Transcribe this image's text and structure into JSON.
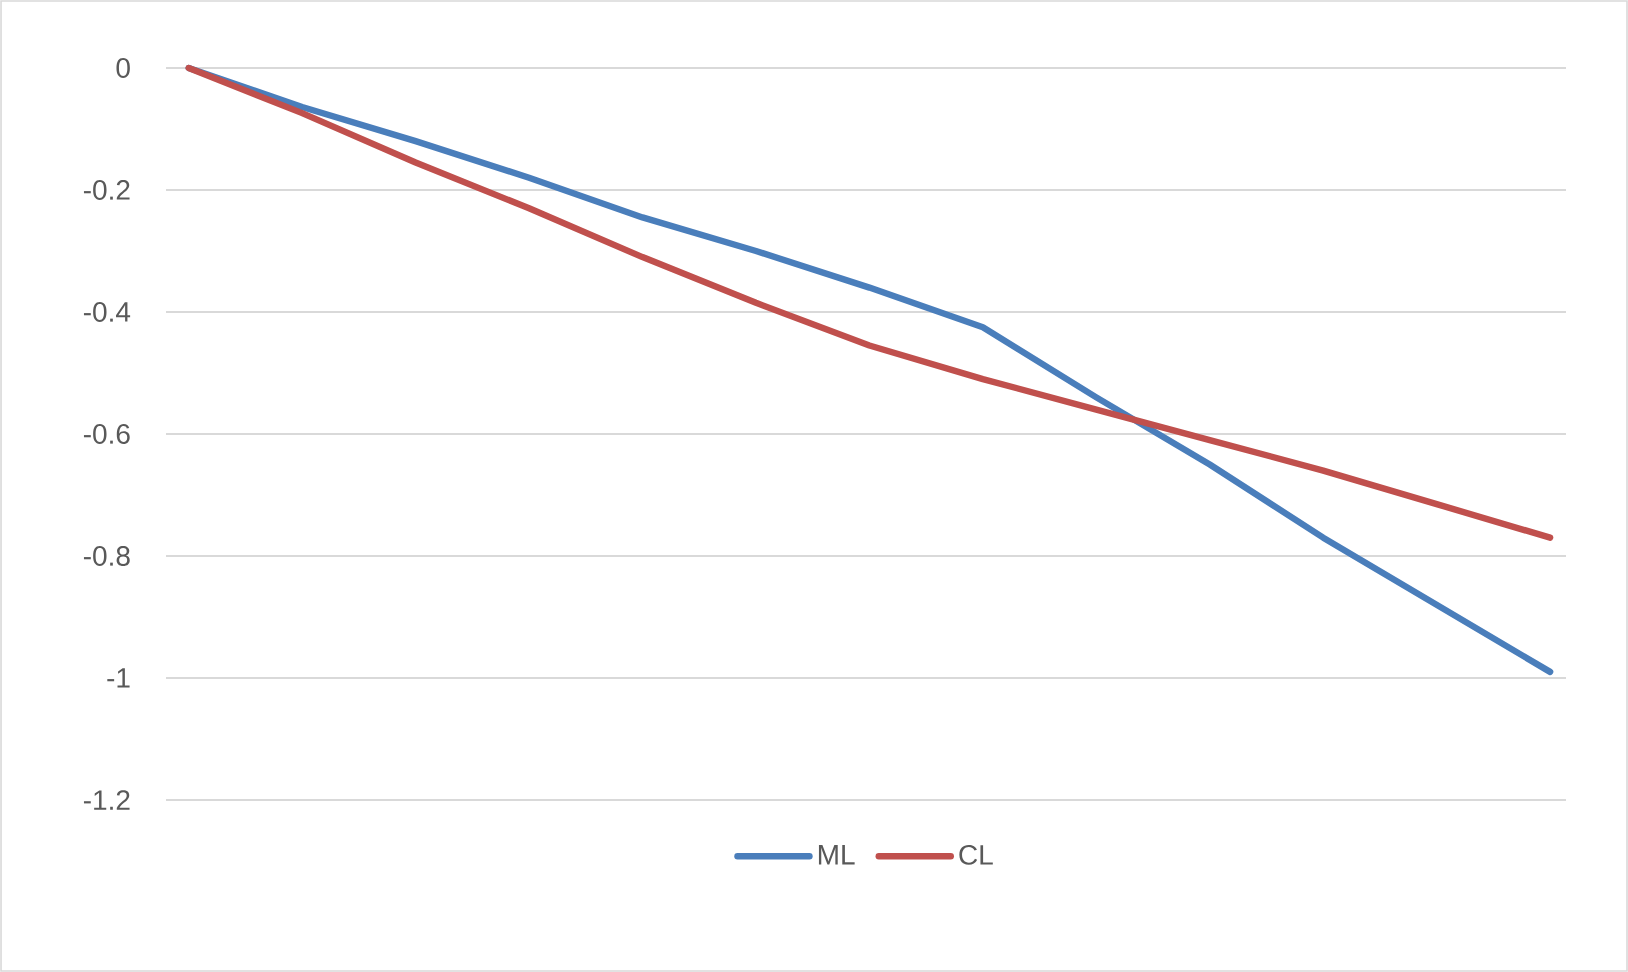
{
  "chart_data": {
    "type": "line",
    "categories": [
      null,
      null,
      null,
      null,
      null,
      null,
      null,
      null,
      null,
      null,
      null,
      null,
      null
    ],
    "series": [
      {
        "name": "ML",
        "color": "#4a7ebb",
        "values": [
          0,
          -0.064,
          -0.12,
          -0.18,
          -0.245,
          -0.3,
          -0.36,
          -0.425,
          -0.54,
          -0.65,
          -0.77,
          -0.88,
          -0.99
        ]
      },
      {
        "name": "CL",
        "color": "#c0504d",
        "values": [
          0,
          -0.074,
          -0.155,
          -0.23,
          -0.31,
          -0.385,
          -0.455,
          -0.51,
          -0.56,
          -0.61,
          -0.66,
          -0.715,
          -0.77
        ]
      }
    ],
    "ylim": [
      -1.2,
      0
    ],
    "yticks": [
      0,
      -0.2,
      -0.4,
      -0.6,
      -0.8,
      -1,
      -1.2
    ],
    "grid": "y",
    "legend": "bottom",
    "marker": "none",
    "line_style": "solid",
    "tick_labels": "y"
  }
}
